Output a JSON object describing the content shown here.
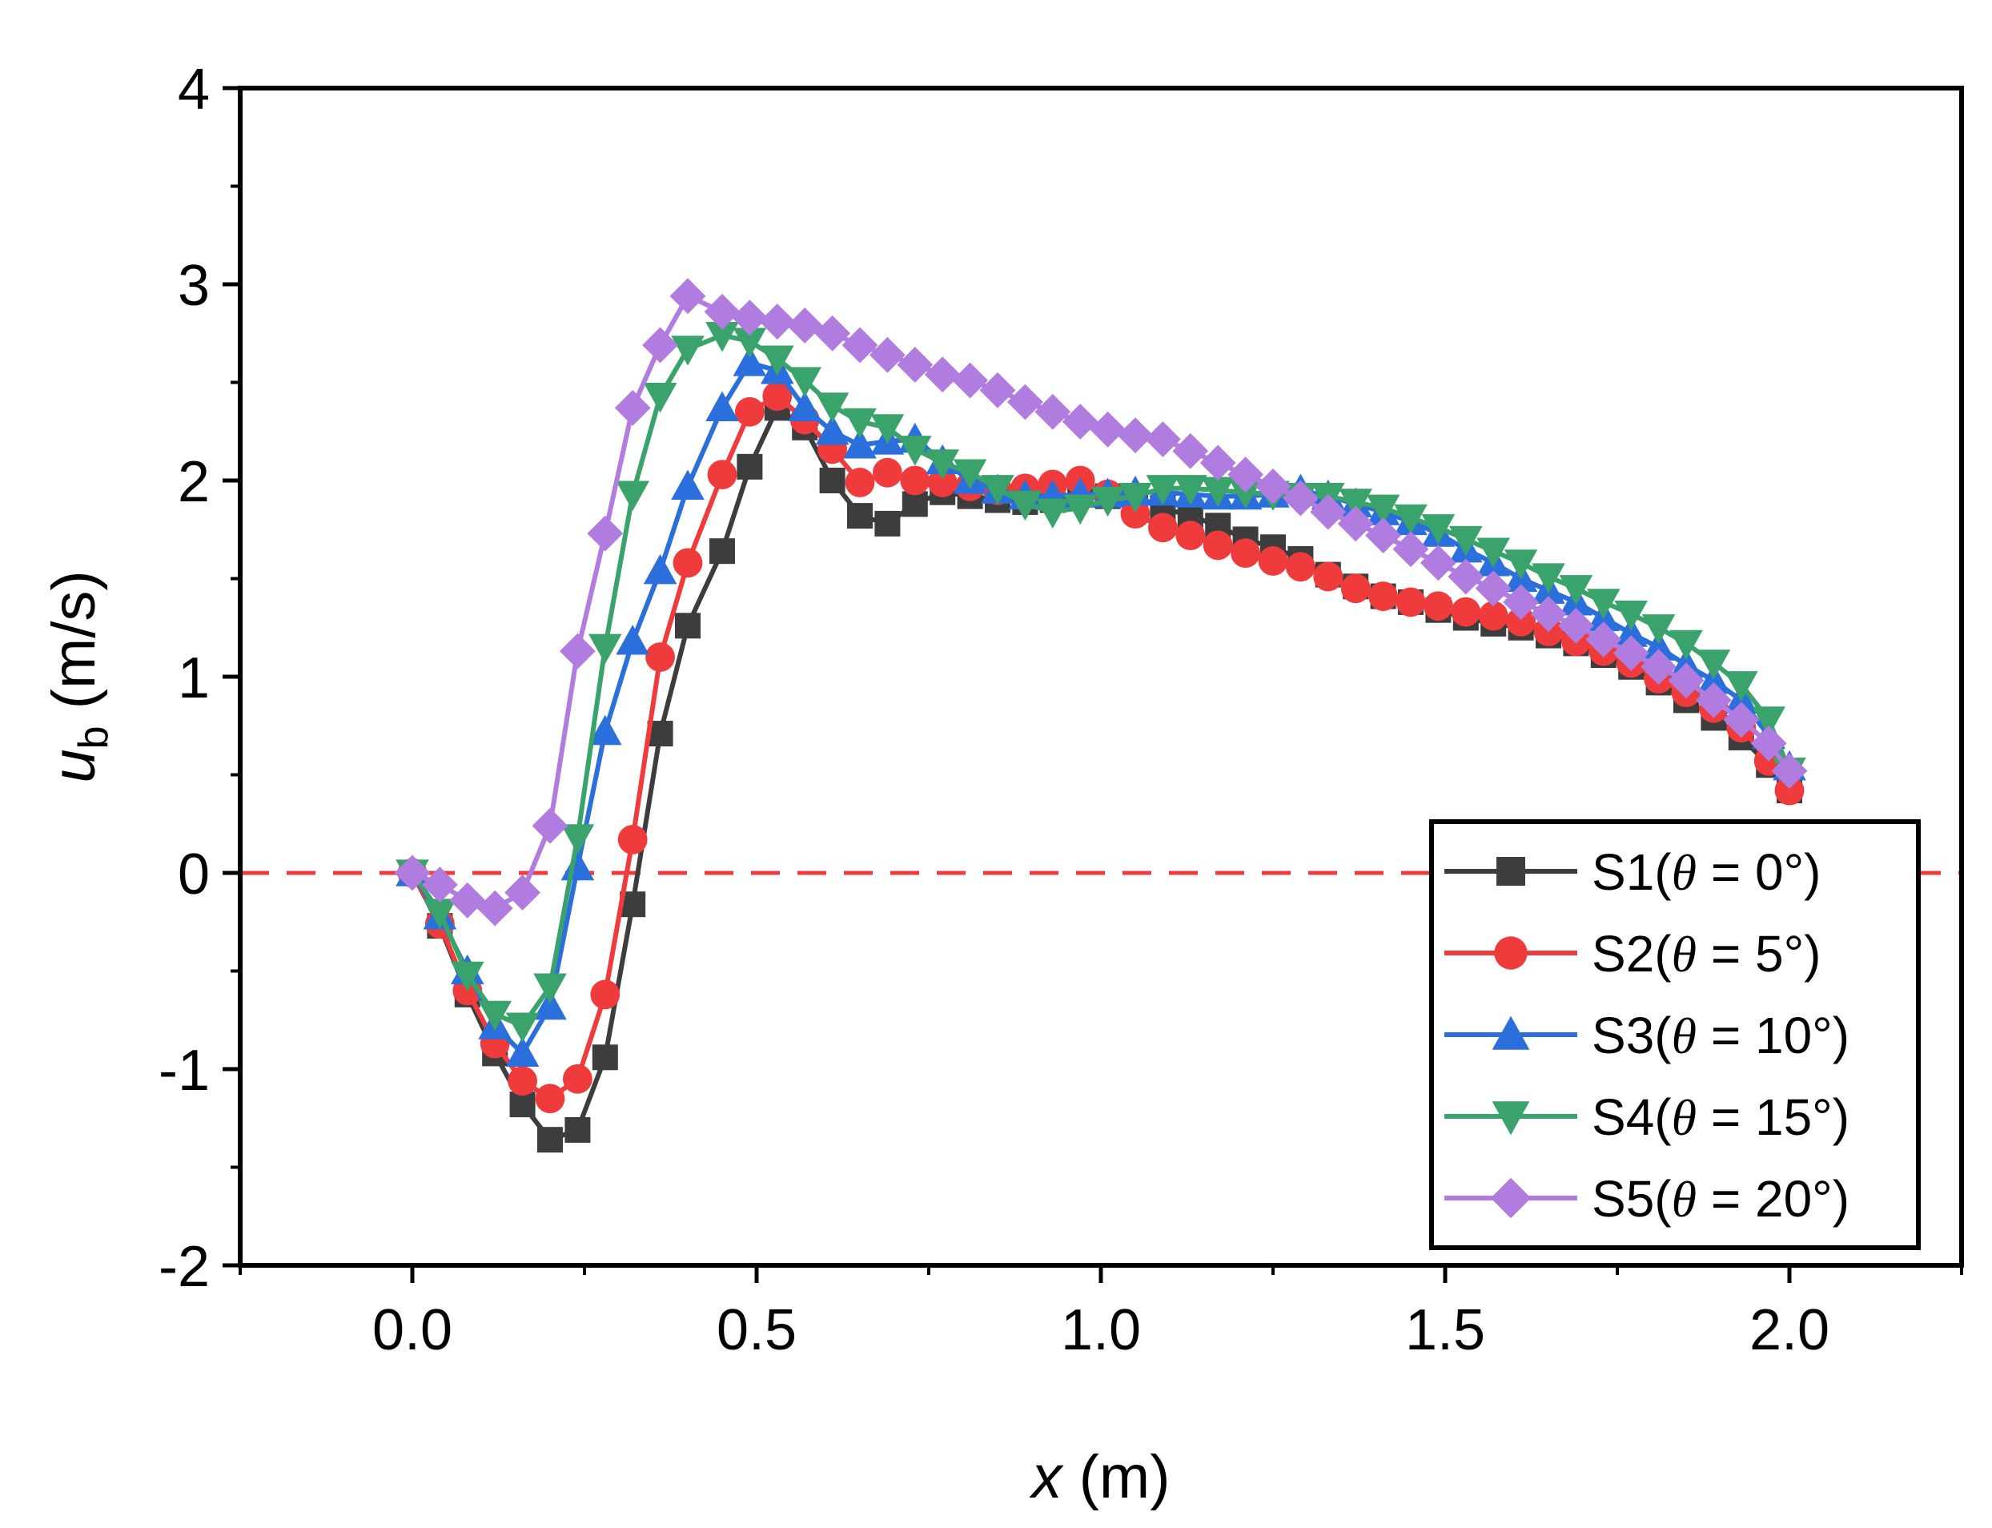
{
  "chart_data": {
    "type": "line",
    "xlabel_var": "x",
    "xlabel_unit": " (m)",
    "ylabel_var": "u",
    "ylabel_sub": "b",
    "ylabel_unit": " (m/s)",
    "xlim": [
      -0.25,
      2.25
    ],
    "ylim": [
      -2,
      4
    ],
    "xticks": [
      0.0,
      0.5,
      1.0,
      1.5,
      2.0
    ],
    "xtick_labels": [
      "0.0",
      "0.5",
      "1.0",
      "1.5",
      "2.0"
    ],
    "yticks": [
      -2,
      -1,
      0,
      1,
      2,
      3,
      4
    ],
    "ytick_labels": [
      "-2",
      "-1",
      "0",
      "1",
      "2",
      "3",
      "4"
    ],
    "reference_line": {
      "y": 0,
      "color": "#ef3b3b",
      "style": "dashed"
    },
    "legend_position": "bottom-right",
    "series": [
      {
        "name": "S1(θ = 0°)",
        "prefix": "S1(",
        "var": "θ",
        "suffix": " = 0°)",
        "color": "#3d3d3d",
        "marker": "square",
        "x": [
          0.0,
          0.04,
          0.08,
          0.12,
          0.16,
          0.2,
          0.24,
          0.28,
          0.32,
          0.36,
          0.4,
          0.45,
          0.49,
          0.53,
          0.57,
          0.61,
          0.65,
          0.69,
          0.73,
          0.77,
          0.81,
          0.85,
          0.89,
          0.93,
          0.97,
          1.01,
          1.05,
          1.09,
          1.13,
          1.17,
          1.21,
          1.25,
          1.29,
          1.33,
          1.37,
          1.41,
          1.45,
          1.49,
          1.53,
          1.57,
          1.61,
          1.65,
          1.69,
          1.73,
          1.77,
          1.81,
          1.85,
          1.89,
          1.93,
          1.97,
          2.0
        ],
        "y": [
          0.0,
          -0.27,
          -0.62,
          -0.92,
          -1.18,
          -1.36,
          -1.31,
          -0.94,
          -0.16,
          0.71,
          1.26,
          1.64,
          2.07,
          2.37,
          2.27,
          2.0,
          1.82,
          1.78,
          1.88,
          1.94,
          1.92,
          1.9,
          1.89,
          1.9,
          1.93,
          1.92,
          1.92,
          1.86,
          1.82,
          1.77,
          1.7,
          1.66,
          1.6,
          1.52,
          1.46,
          1.41,
          1.38,
          1.34,
          1.3,
          1.27,
          1.25,
          1.21,
          1.17,
          1.11,
          1.05,
          0.97,
          0.88,
          0.79,
          0.69,
          0.55,
          0.42
        ]
      },
      {
        "name": "S2(θ = 5°)",
        "prefix": "S2(",
        "var": "θ",
        "suffix": " = 5°)",
        "color": "#ef3b3b",
        "marker": "circle",
        "x": [
          0.0,
          0.04,
          0.08,
          0.12,
          0.16,
          0.2,
          0.24,
          0.28,
          0.32,
          0.36,
          0.4,
          0.45,
          0.49,
          0.53,
          0.57,
          0.61,
          0.65,
          0.69,
          0.73,
          0.77,
          0.81,
          0.85,
          0.89,
          0.93,
          0.97,
          1.01,
          1.05,
          1.09,
          1.13,
          1.17,
          1.21,
          1.25,
          1.29,
          1.33,
          1.37,
          1.41,
          1.45,
          1.49,
          1.53,
          1.57,
          1.61,
          1.65,
          1.69,
          1.73,
          1.77,
          1.81,
          1.85,
          1.89,
          1.93,
          1.97,
          2.0
        ],
        "y": [
          0.0,
          -0.26,
          -0.6,
          -0.87,
          -1.06,
          -1.15,
          -1.05,
          -0.62,
          0.17,
          1.1,
          1.58,
          2.03,
          2.35,
          2.43,
          2.31,
          2.16,
          1.99,
          2.04,
          2.0,
          1.99,
          1.97,
          1.95,
          1.96,
          1.98,
          2.0,
          1.93,
          1.83,
          1.76,
          1.72,
          1.67,
          1.63,
          1.59,
          1.56,
          1.51,
          1.45,
          1.41,
          1.38,
          1.36,
          1.33,
          1.31,
          1.28,
          1.23,
          1.18,
          1.13,
          1.07,
          0.99,
          0.92,
          0.84,
          0.74,
          0.57,
          0.42
        ]
      },
      {
        "name": "S3(θ = 10°)",
        "prefix": "S3(",
        "var": "θ",
        "suffix": " = 10°)",
        "color": "#2a6fdb",
        "marker": "triangle-up",
        "x": [
          0.0,
          0.04,
          0.08,
          0.12,
          0.16,
          0.2,
          0.24,
          0.28,
          0.32,
          0.36,
          0.4,
          0.45,
          0.49,
          0.53,
          0.57,
          0.61,
          0.65,
          0.69,
          0.73,
          0.77,
          0.81,
          0.85,
          0.89,
          0.93,
          0.97,
          1.01,
          1.05,
          1.09,
          1.13,
          1.17,
          1.21,
          1.25,
          1.29,
          1.33,
          1.37,
          1.41,
          1.45,
          1.49,
          1.53,
          1.57,
          1.61,
          1.65,
          1.69,
          1.73,
          1.77,
          1.81,
          1.85,
          1.89,
          1.93,
          1.97,
          2.0
        ],
        "y": [
          0.0,
          -0.22,
          -0.5,
          -0.78,
          -0.92,
          -0.68,
          0.03,
          0.72,
          1.18,
          1.54,
          1.97,
          2.37,
          2.6,
          2.56,
          2.37,
          2.25,
          2.18,
          2.2,
          2.21,
          2.1,
          2.0,
          1.95,
          1.92,
          1.92,
          1.93,
          1.93,
          1.94,
          1.94,
          1.93,
          1.92,
          1.92,
          1.93,
          1.95,
          1.92,
          1.88,
          1.84,
          1.79,
          1.73,
          1.65,
          1.58,
          1.5,
          1.44,
          1.38,
          1.3,
          1.22,
          1.15,
          1.06,
          0.98,
          0.88,
          0.7,
          0.54
        ]
      },
      {
        "name": "S4(θ = 15°)",
        "prefix": "S4(",
        "var": "θ",
        "suffix": " = 15°)",
        "color": "#3aa36b",
        "marker": "triangle-down",
        "x": [
          0.0,
          0.04,
          0.08,
          0.12,
          0.16,
          0.2,
          0.24,
          0.28,
          0.32,
          0.36,
          0.4,
          0.45,
          0.49,
          0.53,
          0.57,
          0.61,
          0.65,
          0.69,
          0.73,
          0.77,
          0.81,
          0.85,
          0.89,
          0.93,
          0.97,
          1.01,
          1.05,
          1.09,
          1.13,
          1.17,
          1.21,
          1.25,
          1.29,
          1.33,
          1.37,
          1.41,
          1.45,
          1.49,
          1.53,
          1.57,
          1.61,
          1.65,
          1.69,
          1.73,
          1.77,
          1.81,
          1.85,
          1.89,
          1.93,
          1.97,
          2.0
        ],
        "y": [
          0.0,
          -0.2,
          -0.52,
          -0.72,
          -0.78,
          -0.58,
          0.18,
          1.15,
          1.93,
          2.43,
          2.67,
          2.74,
          2.71,
          2.62,
          2.51,
          2.38,
          2.3,
          2.27,
          2.16,
          2.09,
          2.04,
          1.96,
          1.88,
          1.84,
          1.86,
          1.9,
          1.92,
          1.96,
          1.96,
          1.95,
          1.94,
          1.93,
          1.92,
          1.92,
          1.89,
          1.86,
          1.81,
          1.76,
          1.7,
          1.64,
          1.58,
          1.51,
          1.45,
          1.38,
          1.32,
          1.25,
          1.17,
          1.07,
          0.96,
          0.78,
          0.52
        ]
      },
      {
        "name": "S5(θ = 20°)",
        "prefix": "S5(",
        "var": "θ",
        "suffix": " = 20°)",
        "color": "#b07cdf",
        "marker": "diamond",
        "x": [
          0.0,
          0.04,
          0.08,
          0.12,
          0.16,
          0.2,
          0.24,
          0.28,
          0.32,
          0.36,
          0.4,
          0.45,
          0.49,
          0.53,
          0.57,
          0.61,
          0.65,
          0.69,
          0.73,
          0.77,
          0.81,
          0.85,
          0.89,
          0.93,
          0.97,
          1.01,
          1.05,
          1.09,
          1.13,
          1.17,
          1.21,
          1.25,
          1.29,
          1.33,
          1.37,
          1.41,
          1.45,
          1.49,
          1.53,
          1.57,
          1.61,
          1.65,
          1.69,
          1.73,
          1.77,
          1.81,
          1.85,
          1.89,
          1.93,
          1.97,
          2.0
        ],
        "y": [
          0.0,
          -0.06,
          -0.14,
          -0.18,
          -0.1,
          0.24,
          1.13,
          1.73,
          2.37,
          2.69,
          2.94,
          2.86,
          2.83,
          2.81,
          2.79,
          2.75,
          2.69,
          2.64,
          2.59,
          2.54,
          2.51,
          2.46,
          2.4,
          2.35,
          2.3,
          2.26,
          2.23,
          2.21,
          2.15,
          2.09,
          2.03,
          1.97,
          1.91,
          1.84,
          1.78,
          1.72,
          1.65,
          1.58,
          1.51,
          1.45,
          1.38,
          1.32,
          1.26,
          1.19,
          1.12,
          1.05,
          0.98,
          0.88,
          0.78,
          0.66,
          0.52
        ]
      }
    ]
  }
}
